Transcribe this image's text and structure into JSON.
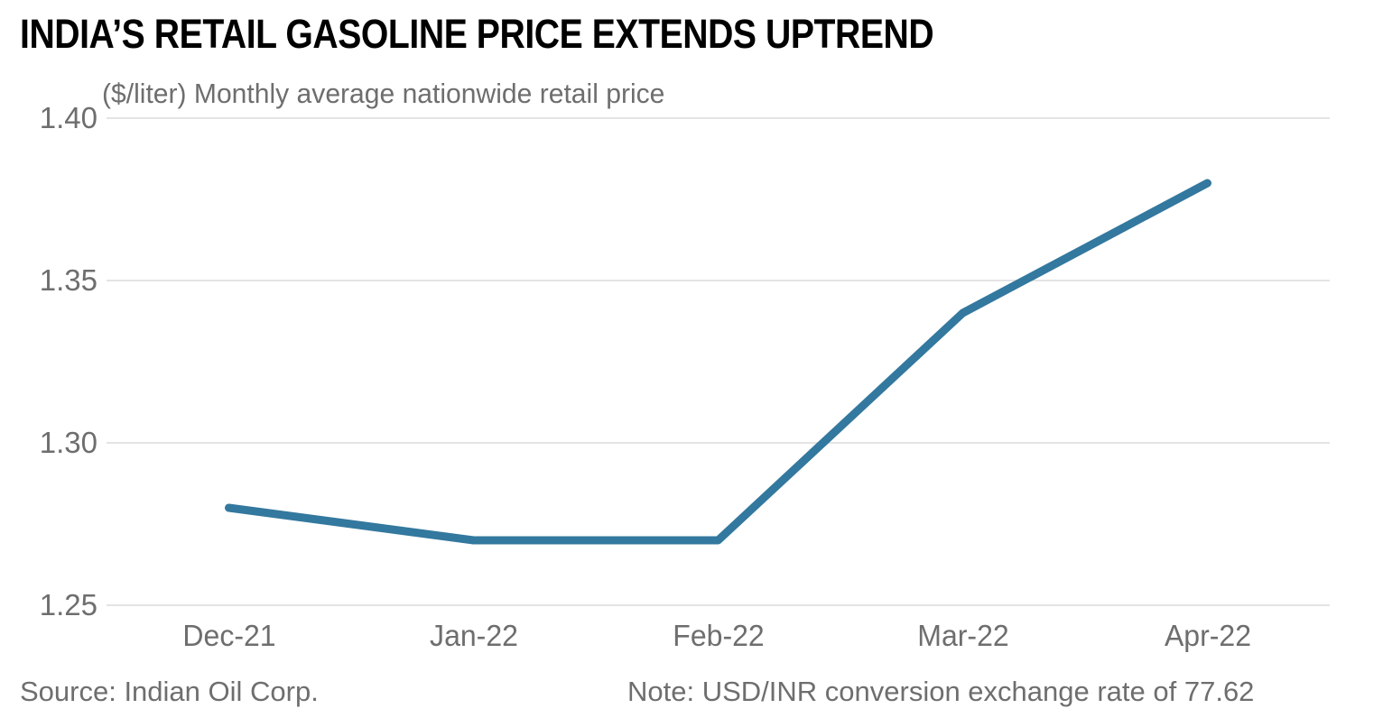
{
  "title": "INDIA’S RETAIL GASOLINE PRICE EXTENDS UPTREND",
  "subtitle": "($/liter) Monthly average nationwide retail price",
  "footer": {
    "source": "Source: Indian Oil Corp.",
    "note": "Note: USD/INR conversion exchange rate of 77.62"
  },
  "colors": {
    "line": "#33789e",
    "grid": "#e4e4e4",
    "axis_text": "#6e6e6e",
    "title_text": "#000000",
    "background": "#ffffff"
  },
  "chart_data": {
    "type": "line",
    "title": "INDIA’S RETAIL GASOLINE PRICE EXTENDS UPTREND",
    "subtitle": "($/liter) Monthly average nationwide retail price",
    "categories": [
      "Dec-21",
      "Jan-22",
      "Feb-22",
      "Mar-22",
      "Apr-22"
    ],
    "series": [
      {
        "name": "Monthly average nationwide retail gasoline price ($/liter)",
        "values": [
          1.28,
          1.27,
          1.27,
          1.34,
          1.38
        ]
      }
    ],
    "xlabel": "",
    "ylabel": "$/liter",
    "ylim": [
      1.25,
      1.4
    ],
    "yticks": [
      1.25,
      1.3,
      1.35,
      1.4
    ],
    "ytick_labels": [
      "1.25",
      "1.30",
      "1.35",
      "1.40"
    ],
    "grid": true,
    "legend_position": "none"
  }
}
